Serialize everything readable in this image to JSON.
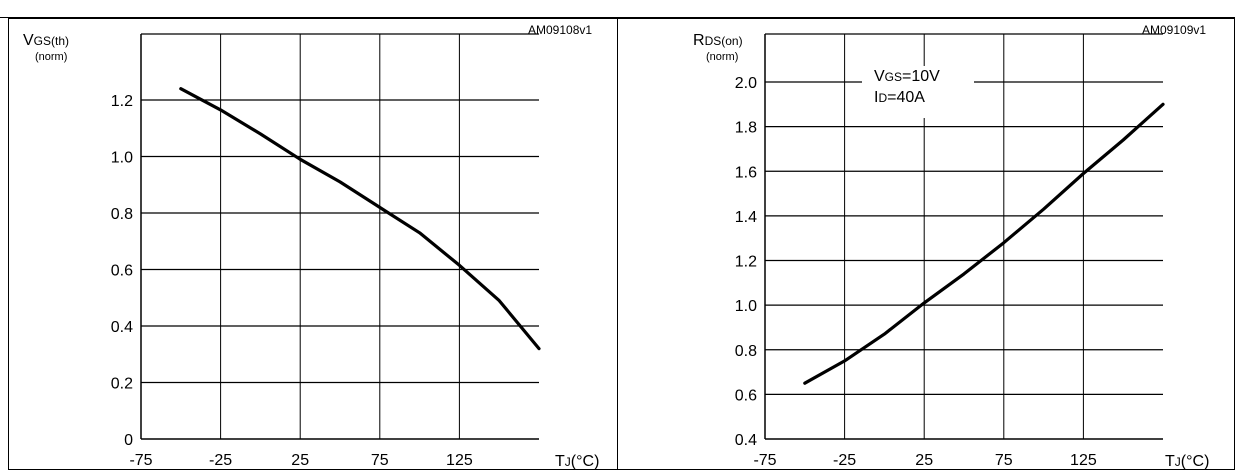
{
  "chart_data": [
    {
      "type": "line",
      "code": "AM09108v1",
      "ylabel_main": "V",
      "ylabel_sub": "GS(th)",
      "ylabel_unit": "(norm)",
      "xlabel_main": "T",
      "xlabel_sub": "J",
      "xlabel_unit": "(°C)",
      "xlim": [
        -75,
        175
      ],
      "ylim": [
        0,
        1.3
      ],
      "x_ticks": [
        "-75",
        "-25",
        "25",
        "75",
        "125"
      ],
      "x_tick_values": [
        -75,
        -25,
        25,
        75,
        125
      ],
      "y_ticks": [
        "0",
        "0.2",
        "0.4",
        "0.6",
        "0.8",
        "1.0",
        "1.2"
      ],
      "y_tick_values": [
        0,
        0.2,
        0.4,
        0.6,
        0.8,
        1.0,
        1.2
      ],
      "grid": true,
      "series": [
        {
          "x": [
            -50,
            -40,
            -25,
            0,
            25,
            50,
            75,
            100,
            125,
            150,
            175
          ],
          "y": [
            1.24,
            1.21,
            1.165,
            1.08,
            0.99,
            0.91,
            0.82,
            0.73,
            0.615,
            0.49,
            0.32
          ]
        }
      ]
    },
    {
      "type": "line",
      "code": "AM09109v1",
      "ylabel_main": "R",
      "ylabel_sub": "DS(on)",
      "ylabel_unit": "(norm)",
      "xlabel_main": "T",
      "xlabel_sub": "J",
      "xlabel_unit": "(°C)",
      "xlim": [
        -75,
        175
      ],
      "ylim": [
        0.4,
        2.15
      ],
      "x_ticks": [
        "-75",
        "-25",
        "25",
        "75",
        "125"
      ],
      "x_tick_values": [
        -75,
        -25,
        25,
        75,
        125
      ],
      "y_ticks": [
        "0.4",
        "0.6",
        "0.8",
        "1.0",
        "1.2",
        "1.4",
        "1.6",
        "1.8",
        "2.0"
      ],
      "y_tick_values": [
        0.4,
        0.6,
        0.8,
        1.0,
        1.2,
        1.4,
        1.6,
        1.8,
        2.0
      ],
      "grid": true,
      "annotation": {
        "line1_main": "V",
        "line1_sub": "GS",
        "line1_rest": "=10V",
        "line2_main": "I",
        "line2_sub": "D",
        "line2_rest": "=40A"
      },
      "series": [
        {
          "x": [
            -50,
            -25,
            0,
            25,
            50,
            75,
            100,
            125,
            150,
            175
          ],
          "y": [
            0.65,
            0.75,
            0.87,
            1.01,
            1.14,
            1.28,
            1.43,
            1.59,
            1.74,
            1.9
          ]
        }
      ]
    }
  ]
}
